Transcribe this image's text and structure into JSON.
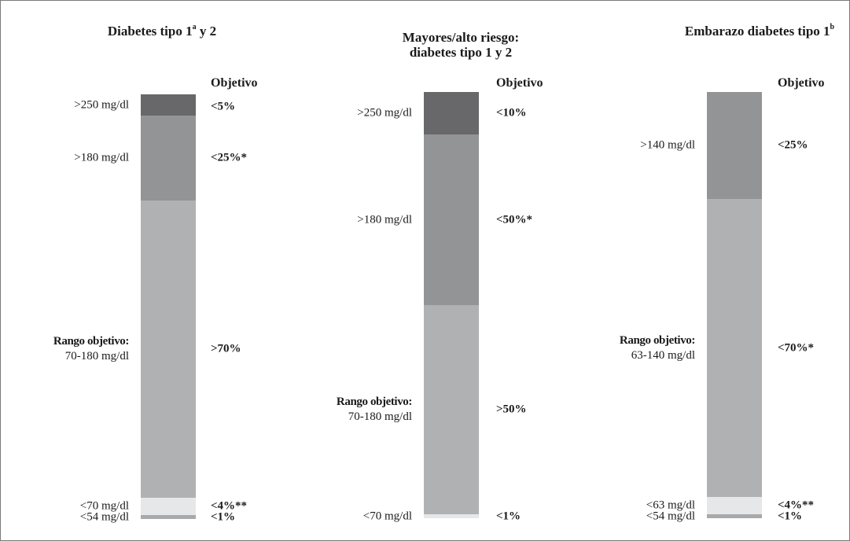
{
  "colors": {
    "very_high": "#68686b",
    "high": "#939496",
    "in_range": "#b0b1b3",
    "low": "#e6e7e8",
    "very_low": "#a8a9ab"
  },
  "objetivo_label": "Objetivo",
  "range_label_head": "Rango objetivo:",
  "chart_data": [
    {
      "type": "bar",
      "stacked": true,
      "title_lines": [
        {
          "main": "Diabetes tipo 1",
          "sup": "a",
          "rest": " y 2"
        }
      ],
      "segments": [
        {
          "class": "very_high",
          "label": ">250 mg/dl",
          "target": "<5%",
          "share": 0.05
        },
        {
          "class": "high",
          "label": ">180 mg/dl",
          "target": "<25%*",
          "share": 0.2
        },
        {
          "class": "in_range",
          "range": "70-180 mg/dl",
          "target": ">70%",
          "share": 0.7
        },
        {
          "class": "low",
          "label": "<70 mg/dl",
          "target": "<4%**",
          "share": 0.04
        },
        {
          "class": "very_low",
          "label": "<54 mg/dl",
          "target": "<1%",
          "share": 0.01
        }
      ]
    },
    {
      "type": "bar",
      "stacked": true,
      "title_lines": [
        {
          "main": "Mayores/alto riesgo:",
          "sup": "",
          "rest": ""
        },
        {
          "main": "diabetes tipo 1 y 2",
          "sup": "",
          "rest": ""
        }
      ],
      "segments": [
        {
          "class": "very_high",
          "label": ">250 mg/dl",
          "target": "<10%",
          "share": 0.1
        },
        {
          "class": "high",
          "label": ">180 mg/dl",
          "target": "<50%*",
          "share": 0.4
        },
        {
          "class": "in_range",
          "range": "70-180 mg/dl",
          "target": ">50%",
          "share": 0.49
        },
        {
          "class": "low",
          "label": "<70 mg/dl",
          "target": "<1%",
          "share": 0.01
        }
      ]
    },
    {
      "type": "bar",
      "stacked": true,
      "title_lines": [
        {
          "main": "Embarazo diabetes tipo 1",
          "sup": "b",
          "rest": ""
        }
      ],
      "segments": [
        {
          "class": "high",
          "label": ">140 mg/dl",
          "target": "<25%",
          "share": 0.25
        },
        {
          "class": "in_range",
          "range": "63-140 mg/dl",
          "target": "<70%*",
          "share": 0.7
        },
        {
          "class": "low",
          "label": "<63 mg/dl",
          "target": "<4%**",
          "share": 0.04
        },
        {
          "class": "very_low",
          "label": "<54 mg/dl",
          "target": "<1%",
          "share": 0.01
        }
      ]
    }
  ]
}
